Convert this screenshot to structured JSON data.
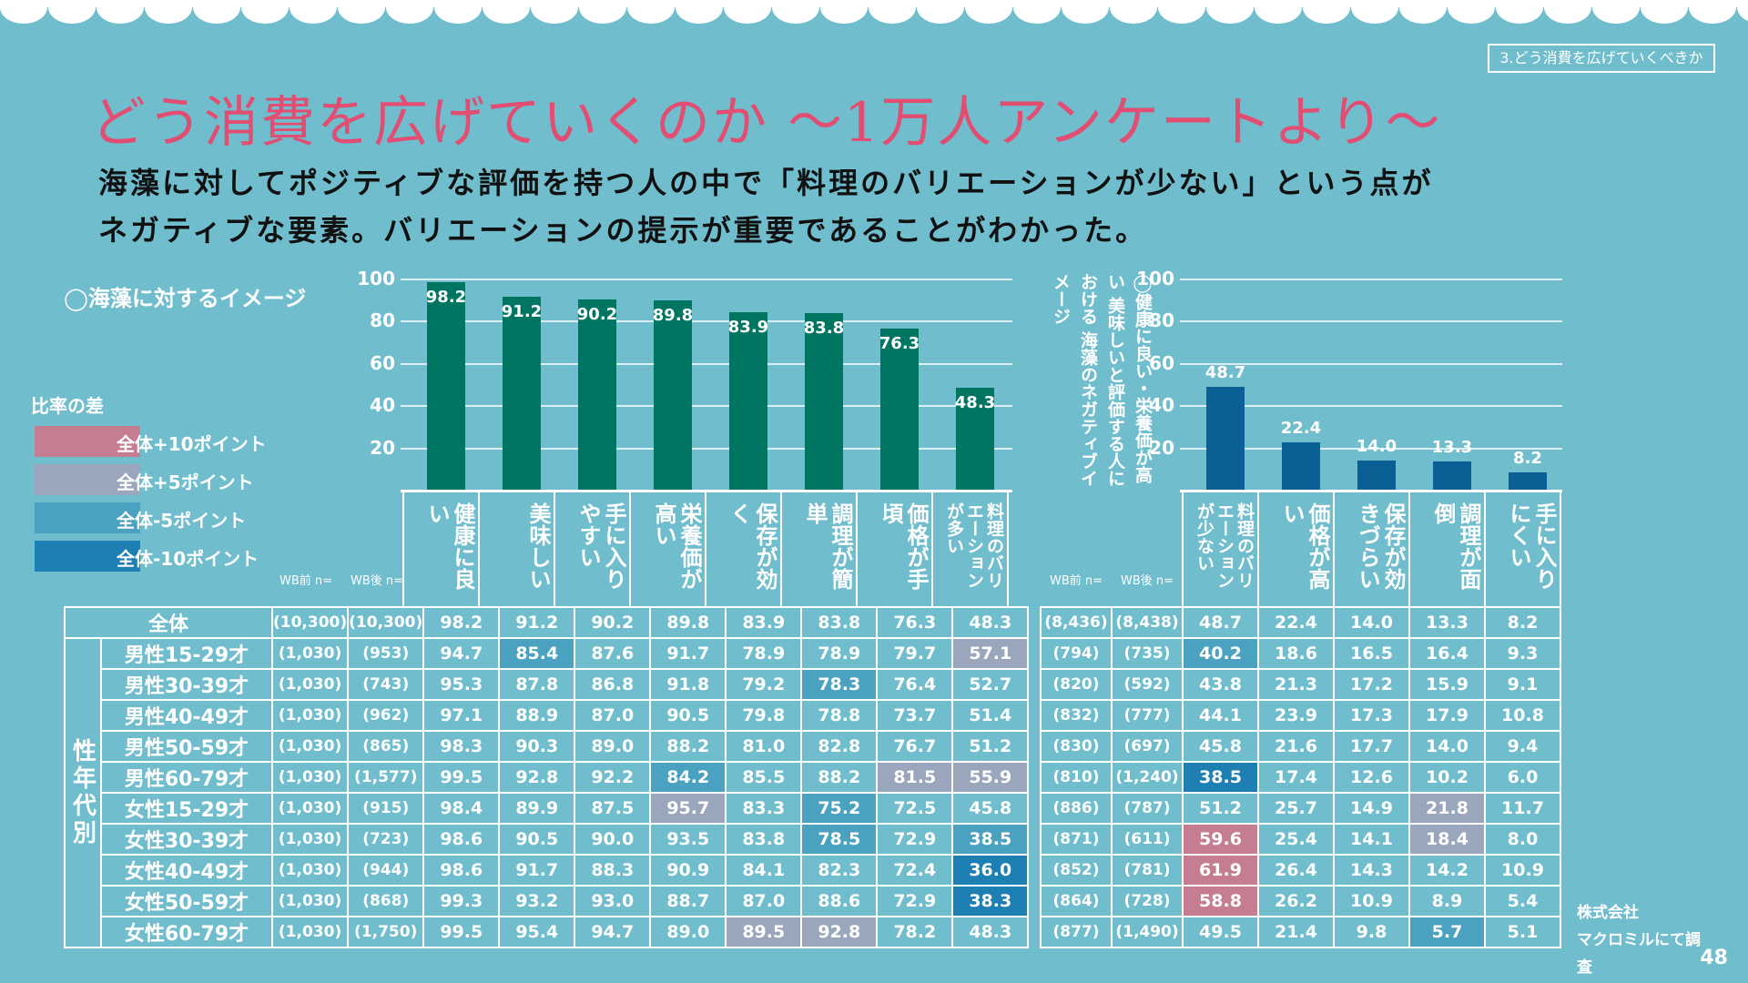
{
  "header_tag": "3.どう消費を広げていくべきか",
  "title": "どう消費を広げていくのか ～1万人アンケートより～",
  "subtitle_line1": "海藻に対してポジティブな評価を持つ人の中で「料理のバリエーションが少ない」という点が",
  "subtitle_line2": "ネガティブな要素。バリエーションの提示が重要であることがわかった。",
  "left_section_title": "◯海藻に対するイメージ",
  "right_section_title": "◯健康に良い・栄養価が高い 美味しいと評価する人における 海藻のネガティブイメージ",
  "legend": {
    "title": "比率の差",
    "items": [
      {
        "label": "全体+10ポイント",
        "color": "#c57d92"
      },
      {
        "label": "全体+5ポイント",
        "color": "#9aa6bb"
      },
      {
        "label": "全体-5ポイント",
        "color": "#4aa2c0"
      },
      {
        "label": "全体-10ポイント",
        "color": "#1e7fb3"
      }
    ]
  },
  "wb_before": "WB前 n=",
  "wb_after": "WB後 n=",
  "group_label": "性年代別",
  "page_number": "48",
  "corp_line1": "株式会社",
  "corp_line2": "マクロミルにて調査",
  "chart_data": [
    {
      "type": "bar",
      "title": "海藻に対するイメージ",
      "categories": [
        "健康に良い",
        "美味しい",
        "手に入りやすい",
        "栄養価が高い",
        "保存が効く",
        "調理が簡単",
        "価格が手頃",
        "料理のバリエーションが多い"
      ],
      "values": [
        98.2,
        91.2,
        90.2,
        89.8,
        83.9,
        83.8,
        76.3,
        48.3
      ],
      "ylim": [
        0,
        100
      ],
      "yticks": [
        "100",
        "80",
        "60",
        "40",
        "20"
      ],
      "bar_color": "#007662"
    },
    {
      "type": "bar",
      "title": "健康に良い・栄養価が高い 美味しいと評価する人における 海藻のネガティブイメージ",
      "categories": [
        "料理のバリエーションが少ない",
        "価格が高い",
        "保存が効きづらい",
        "調理が面倒",
        "手に入りにくい"
      ],
      "values": [
        48.7,
        22.4,
        14.0,
        13.3,
        8.2
      ],
      "ylim": [
        0,
        100
      ],
      "yticks": [
        "100",
        "80",
        "60",
        "40",
        "20"
      ],
      "bar_color": "#0a5f94"
    }
  ],
  "left_headers": [
    "健康に良い",
    "美味しい",
    "手に入りやすい",
    "栄養価が高い",
    "保存が効く",
    "調理が簡単",
    "価格が手頃",
    "料理のバリエーションが多い"
  ],
  "right_headers": [
    "料理のバリエーションが少ない",
    "価格が高い",
    "保存が効きづらい",
    "調理が面倒",
    "手に入りにくい"
  ],
  "table_left": {
    "rows": [
      {
        "label": "全体",
        "n_before": "(10,300)",
        "n_after": "(10,300)",
        "values": [
          "98.2",
          "91.2",
          "90.2",
          "89.8",
          "83.9",
          "83.8",
          "76.3",
          "48.3"
        ],
        "highlights": [
          null,
          null,
          null,
          null,
          null,
          null,
          null,
          null
        ]
      },
      {
        "label": "男性15-29才",
        "n_before": "(1,030)",
        "n_after": "(953)",
        "values": [
          "94.7",
          "85.4",
          "87.6",
          "91.7",
          "78.9",
          "78.9",
          "79.7",
          "57.1"
        ],
        "highlights": [
          null,
          "m5",
          null,
          null,
          null,
          null,
          null,
          "p5"
        ]
      },
      {
        "label": "男性30-39才",
        "n_before": "(1,030)",
        "n_after": "(743)",
        "values": [
          "95.3",
          "87.8",
          "86.8",
          "91.8",
          "79.2",
          "78.3",
          "76.4",
          "52.7"
        ],
        "highlights": [
          null,
          null,
          null,
          null,
          null,
          "m5",
          null,
          null
        ]
      },
      {
        "label": "男性40-49才",
        "n_before": "(1,030)",
        "n_after": "(962)",
        "values": [
          "97.1",
          "88.9",
          "87.0",
          "90.5",
          "79.8",
          "78.8",
          "73.7",
          "51.4"
        ],
        "highlights": [
          null,
          null,
          null,
          null,
          null,
          null,
          null,
          null
        ]
      },
      {
        "label": "男性50-59才",
        "n_before": "(1,030)",
        "n_after": "(865)",
        "values": [
          "98.3",
          "90.3",
          "89.0",
          "88.2",
          "81.0",
          "82.8",
          "76.7",
          "51.2"
        ],
        "highlights": [
          null,
          null,
          null,
          null,
          null,
          null,
          null,
          null
        ]
      },
      {
        "label": "男性60-79才",
        "n_before": "(1,030)",
        "n_after": "(1,577)",
        "values": [
          "99.5",
          "92.8",
          "92.2",
          "84.2",
          "85.5",
          "88.2",
          "81.5",
          "55.9"
        ],
        "highlights": [
          null,
          null,
          null,
          "m5",
          null,
          null,
          "p5",
          "p5"
        ]
      },
      {
        "label": "女性15-29才",
        "n_before": "(1,030)",
        "n_after": "(915)",
        "values": [
          "98.4",
          "89.9",
          "87.5",
          "95.7",
          "83.3",
          "75.2",
          "72.5",
          "45.8"
        ],
        "highlights": [
          null,
          null,
          null,
          "p5",
          null,
          "m5",
          null,
          null
        ]
      },
      {
        "label": "女性30-39才",
        "n_before": "(1,030)",
        "n_after": "(723)",
        "values": [
          "98.6",
          "90.5",
          "90.0",
          "93.5",
          "83.8",
          "78.5",
          "72.9",
          "38.5"
        ],
        "highlights": [
          null,
          null,
          null,
          null,
          null,
          "m5",
          null,
          "m5"
        ]
      },
      {
        "label": "女性40-49才",
        "n_before": "(1,030)",
        "n_after": "(944)",
        "values": [
          "98.6",
          "91.7",
          "88.3",
          "90.9",
          "84.1",
          "82.3",
          "72.4",
          "36.0"
        ],
        "highlights": [
          null,
          null,
          null,
          null,
          null,
          null,
          null,
          "m10"
        ]
      },
      {
        "label": "女性50-59才",
        "n_before": "(1,030)",
        "n_after": "(868)",
        "values": [
          "99.3",
          "93.2",
          "93.0",
          "88.7",
          "87.0",
          "88.6",
          "72.9",
          "38.3"
        ],
        "highlights": [
          null,
          null,
          null,
          null,
          null,
          null,
          null,
          "m10"
        ]
      },
      {
        "label": "女性60-79才",
        "n_before": "(1,030)",
        "n_after": "(1,750)",
        "values": [
          "99.5",
          "95.4",
          "94.7",
          "89.0",
          "89.5",
          "92.8",
          "78.2",
          "48.3"
        ],
        "highlights": [
          null,
          null,
          null,
          null,
          "p5",
          "p5",
          null,
          null
        ]
      }
    ]
  },
  "table_right": {
    "rows": [
      {
        "n_before": "(8,436)",
        "n_after": "(8,438)",
        "values": [
          "48.7",
          "22.4",
          "14.0",
          "13.3",
          "8.2"
        ],
        "highlights": [
          null,
          null,
          null,
          null,
          null
        ]
      },
      {
        "n_before": "(794)",
        "n_after": "(735)",
        "values": [
          "40.2",
          "18.6",
          "16.5",
          "16.4",
          "9.3"
        ],
        "highlights": [
          "m5",
          null,
          null,
          null,
          null
        ]
      },
      {
        "n_before": "(820)",
        "n_after": "(592)",
        "values": [
          "43.8",
          "21.3",
          "17.2",
          "15.9",
          "9.1"
        ],
        "highlights": [
          null,
          null,
          null,
          null,
          null
        ]
      },
      {
        "n_before": "(832)",
        "n_after": "(777)",
        "values": [
          "44.1",
          "23.9",
          "17.3",
          "17.9",
          "10.8"
        ],
        "highlights": [
          null,
          null,
          null,
          null,
          null
        ]
      },
      {
        "n_before": "(830)",
        "n_after": "(697)",
        "values": [
          "45.8",
          "21.6",
          "17.7",
          "14.0",
          "9.4"
        ],
        "highlights": [
          null,
          null,
          null,
          null,
          null
        ]
      },
      {
        "n_before": "(810)",
        "n_after": "(1,240)",
        "values": [
          "38.5",
          "17.4",
          "12.6",
          "10.2",
          "6.0"
        ],
        "highlights": [
          "m10",
          null,
          null,
          null,
          null
        ]
      },
      {
        "n_before": "(886)",
        "n_after": "(787)",
        "values": [
          "51.2",
          "25.7",
          "14.9",
          "21.8",
          "11.7"
        ],
        "highlights": [
          null,
          null,
          null,
          "p5",
          null
        ]
      },
      {
        "n_before": "(871)",
        "n_after": "(611)",
        "values": [
          "59.6",
          "25.4",
          "14.1",
          "18.4",
          "8.0"
        ],
        "highlights": [
          "p10",
          null,
          null,
          "p5",
          null
        ]
      },
      {
        "n_before": "(852)",
        "n_after": "(781)",
        "values": [
          "61.9",
          "26.4",
          "14.3",
          "14.2",
          "10.9"
        ],
        "highlights": [
          "p10",
          null,
          null,
          null,
          null
        ]
      },
      {
        "n_before": "(864)",
        "n_after": "(728)",
        "values": [
          "58.8",
          "26.2",
          "10.9",
          "8.9",
          "5.4"
        ],
        "highlights": [
          "p10",
          null,
          null,
          null,
          null
        ]
      },
      {
        "n_before": "(877)",
        "n_after": "(1,490)",
        "values": [
          "49.5",
          "21.4",
          "9.8",
          "5.7",
          "5.1"
        ],
        "highlights": [
          null,
          null,
          null,
          "m5",
          null
        ]
      }
    ]
  }
}
